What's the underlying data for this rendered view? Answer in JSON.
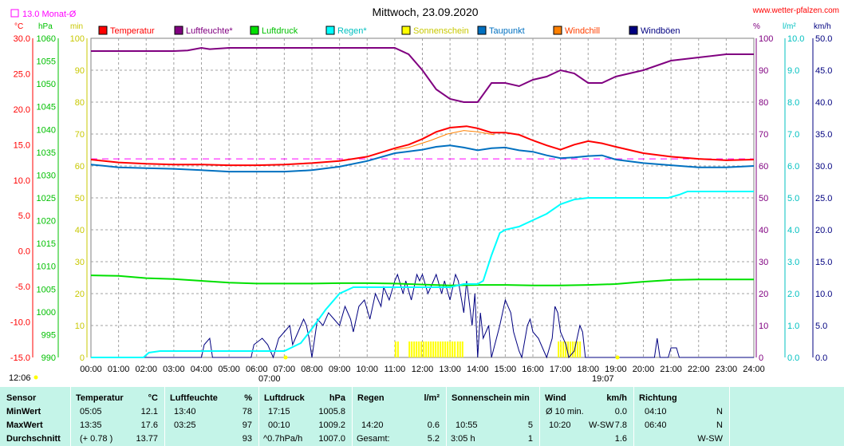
{
  "chart_data": {
    "type": "line",
    "title": "Mittwoch, 23.09.2020",
    "source": "www.wetter-pfalzen.com",
    "avg_note": "13.0 Monat-Ø",
    "units": {
      "temp": "°C",
      "pressure": "hPa",
      "sun": "min",
      "humidity": "%",
      "rain": "l/m²",
      "wind": "km/h"
    },
    "axes": {
      "temp": {
        "min": -15,
        "max": 30,
        "ticks": [
          "30.0",
          "25.0",
          "20.0",
          "15.0",
          "10.0",
          "5.0",
          "0.0",
          "-5.0",
          "-10.0",
          "-15.0"
        ],
        "color": "#ff0000"
      },
      "pressure": {
        "min": 990,
        "max": 1060,
        "ticks": [
          "1060",
          "1055",
          "1050",
          "1045",
          "1040",
          "1035",
          "1030",
          "1025",
          "1020",
          "1015",
          "1010",
          "1005",
          "1000",
          "995",
          "990"
        ],
        "color": "#00c000"
      },
      "sun": {
        "min": 0,
        "max": 100,
        "ticks": [
          "100",
          "90",
          "80",
          "70",
          "60",
          "50",
          "40",
          "30",
          "20",
          "10",
          "0"
        ],
        "color": "#c8c800"
      },
      "humidity": {
        "min": 0,
        "max": 100,
        "ticks": [
          "100",
          "90",
          "80",
          "70",
          "60",
          "50",
          "40",
          "30",
          "20",
          "10",
          "0"
        ],
        "color": "#800080"
      },
      "rain": {
        "min": 0,
        "max": 10,
        "ticks": [
          "10.0",
          "9.0",
          "8.0",
          "7.0",
          "6.0",
          "5.0",
          "4.0",
          "3.0",
          "2.0",
          "1.0",
          "0.0"
        ],
        "color": "#00c0c0"
      },
      "wind": {
        "min": 0,
        "max": 50,
        "ticks": [
          "50.0",
          "45.0",
          "40.0",
          "35.0",
          "30.0",
          "25.0",
          "20.0",
          "15.0",
          "10.0",
          "5.0",
          "0.0"
        ],
        "color": "#000080"
      }
    },
    "x_ticks": [
      "00:00",
      "01:00",
      "02:00",
      "03:00",
      "04:00",
      "05:00",
      "06:00",
      "07:00",
      "08:00",
      "09:00",
      "10:00",
      "11:00",
      "12:00",
      "13:00",
      "14:00",
      "15:00",
      "16:00",
      "17:00",
      "18:00",
      "19:00",
      "20:00",
      "21:00",
      "22:00",
      "23:00",
      "24:00"
    ],
    "sunrise": "07:00",
    "sunset": "19:07",
    "daylength": "12:06",
    "legend": [
      {
        "name": "Temperatur",
        "color": "#ff0000",
        "text_color": "#ff0000"
      },
      {
        "name": "Luftfeuchte*",
        "color": "#800080",
        "text_color": "#800080"
      },
      {
        "name": "Luftdruck",
        "color": "#00e000",
        "text_color": "#00c000"
      },
      {
        "name": "Regen*",
        "color": "#00ffff",
        "text_color": "#00c0c0"
      },
      {
        "name": "Sonnenschein",
        "color": "#ffff00",
        "text_color": "#c8c800"
      },
      {
        "name": "Taupunkt",
        "color": "#0070c0",
        "text_color": "#0070c0"
      },
      {
        "name": "Windchill",
        "color": "#ff8000",
        "text_color": "#ff4000"
      },
      {
        "name": "Windböen",
        "color": "#000080",
        "text_color": "#000080"
      }
    ],
    "monthly_avg_temp": 13.0,
    "series": {
      "temperature": [
        [
          0,
          12.9
        ],
        [
          1,
          12.5
        ],
        [
          2,
          12.3
        ],
        [
          3,
          12.2
        ],
        [
          4,
          12.2
        ],
        [
          5,
          12.1
        ],
        [
          6,
          12.1
        ],
        [
          7,
          12.2
        ],
        [
          8,
          12.4
        ],
        [
          9,
          12.7
        ],
        [
          10,
          13.3
        ],
        [
          11,
          14.5
        ],
        [
          11.5,
          15.0
        ],
        [
          12,
          15.8
        ],
        [
          12.5,
          16.8
        ],
        [
          13,
          17.4
        ],
        [
          13.6,
          17.6
        ],
        [
          14,
          17.3
        ],
        [
          14.5,
          16.7
        ],
        [
          15,
          16.7
        ],
        [
          15.5,
          16.4
        ],
        [
          16,
          15.6
        ],
        [
          16.5,
          14.9
        ],
        [
          17,
          14.3
        ],
        [
          17.5,
          15.0
        ],
        [
          18,
          15.5
        ],
        [
          18.5,
          15.2
        ],
        [
          19,
          14.7
        ],
        [
          20,
          13.8
        ],
        [
          21,
          13.3
        ],
        [
          22,
          13.0
        ],
        [
          23,
          12.8
        ],
        [
          24,
          12.9
        ]
      ],
      "dewpoint": [
        [
          0,
          12.2
        ],
        [
          1,
          11.8
        ],
        [
          2,
          11.7
        ],
        [
          3,
          11.6
        ],
        [
          4,
          11.4
        ],
        [
          5,
          11.2
        ],
        [
          6,
          11.2
        ],
        [
          7,
          11.2
        ],
        [
          8,
          11.4
        ],
        [
          9,
          11.9
        ],
        [
          10,
          12.7
        ],
        [
          11,
          13.8
        ],
        [
          12,
          14.3
        ],
        [
          12.5,
          14.7
        ],
        [
          13,
          14.9
        ],
        [
          13.5,
          14.6
        ],
        [
          14,
          14.2
        ],
        [
          14.5,
          14.5
        ],
        [
          15,
          14.6
        ],
        [
          15.5,
          14.2
        ],
        [
          16,
          14.0
        ],
        [
          16.5,
          13.5
        ],
        [
          17,
          13.1
        ],
        [
          17.5,
          13.2
        ],
        [
          18,
          13.4
        ],
        [
          18.5,
          13.5
        ],
        [
          19,
          12.9
        ],
        [
          20,
          12.4
        ],
        [
          21,
          12.1
        ],
        [
          22,
          11.8
        ],
        [
          23,
          11.8
        ],
        [
          24,
          12.0
        ]
      ],
      "humidity": [
        [
          0,
          96
        ],
        [
          1,
          96
        ],
        [
          2,
          96
        ],
        [
          3,
          96
        ],
        [
          3.5,
          96.2
        ],
        [
          4,
          97
        ],
        [
          4.3,
          96.6
        ],
        [
          5,
          97
        ],
        [
          6,
          97
        ],
        [
          7,
          97
        ],
        [
          8,
          97
        ],
        [
          9,
          97
        ],
        [
          10,
          97
        ],
        [
          11,
          97
        ],
        [
          11.5,
          95
        ],
        [
          12,
          90
        ],
        [
          12.5,
          84
        ],
        [
          13,
          81
        ],
        [
          13.5,
          80
        ],
        [
          14,
          80
        ],
        [
          14.5,
          86
        ],
        [
          15,
          86
        ],
        [
          15.5,
          85
        ],
        [
          16,
          87
        ],
        [
          16.5,
          88
        ],
        [
          17,
          90
        ],
        [
          17.5,
          89
        ],
        [
          18,
          86
        ],
        [
          18.5,
          86
        ],
        [
          19,
          88
        ],
        [
          20,
          90
        ],
        [
          21,
          93
        ],
        [
          22,
          94
        ],
        [
          23,
          95
        ],
        [
          24,
          95
        ]
      ],
      "pressure": [
        [
          0,
          1008.0
        ],
        [
          1,
          1007.9
        ],
        [
          2,
          1007.4
        ],
        [
          3,
          1007.2
        ],
        [
          4,
          1006.8
        ],
        [
          5,
          1006.4
        ],
        [
          6,
          1006.2
        ],
        [
          7,
          1006.2
        ],
        [
          8,
          1006.2
        ],
        [
          9,
          1006.3
        ],
        [
          10,
          1006.3
        ],
        [
          11,
          1006.2
        ],
        [
          12,
          1006.0
        ],
        [
          13,
          1005.8
        ],
        [
          14,
          1005.9
        ],
        [
          15,
          1005.9
        ],
        [
          16,
          1005.8
        ],
        [
          17,
          1005.8
        ],
        [
          18,
          1005.9
        ],
        [
          19,
          1006.1
        ],
        [
          20,
          1006.6
        ],
        [
          21,
          1007.0
        ],
        [
          22,
          1007.1
        ],
        [
          23,
          1007.1
        ],
        [
          24,
          1007.1
        ]
      ],
      "rain": [
        [
          0,
          0
        ],
        [
          1.9,
          0
        ],
        [
          2.1,
          0.15
        ],
        [
          2.5,
          0.2
        ],
        [
          3,
          0.2
        ],
        [
          7,
          0.2
        ],
        [
          7.6,
          0.45
        ],
        [
          8,
          0.9
        ],
        [
          8.5,
          1.5
        ],
        [
          9,
          2.0
        ],
        [
          9.5,
          2.2
        ],
        [
          10,
          2.2
        ],
        [
          11,
          2.2
        ],
        [
          12,
          2.2
        ],
        [
          13,
          2.2
        ],
        [
          13.5,
          2.3
        ],
        [
          14,
          2.3
        ],
        [
          14.2,
          2.4
        ],
        [
          14.5,
          3.2
        ],
        [
          14.8,
          3.9
        ],
        [
          15,
          4.0
        ],
        [
          15.5,
          4.1
        ],
        [
          16,
          4.3
        ],
        [
          16.5,
          4.5
        ],
        [
          17,
          4.8
        ],
        [
          17.5,
          4.95
        ],
        [
          18,
          5.0
        ],
        [
          19,
          5.0
        ],
        [
          20,
          5.0
        ],
        [
          20.9,
          5.0
        ],
        [
          21.3,
          5.1
        ],
        [
          21.6,
          5.2
        ],
        [
          24,
          5.2
        ]
      ],
      "gust": [
        [
          0,
          0
        ],
        [
          4,
          0
        ],
        [
          4.1,
          2
        ],
        [
          4.3,
          3
        ],
        [
          4.4,
          0
        ],
        [
          5.8,
          0
        ],
        [
          5.9,
          2
        ],
        [
          6.2,
          3
        ],
        [
          6.4,
          2
        ],
        [
          6.6,
          0
        ],
        [
          6.8,
          3
        ],
        [
          7,
          4
        ],
        [
          7.2,
          5
        ],
        [
          7.3,
          2
        ],
        [
          7.5,
          4
        ],
        [
          7.6,
          5
        ],
        [
          7.7,
          6
        ],
        [
          7.8,
          5
        ],
        [
          7.9,
          3
        ],
        [
          8,
          0
        ],
        [
          8.1,
          3
        ],
        [
          8.2,
          6
        ],
        [
          8.4,
          5
        ],
        [
          8.6,
          7
        ],
        [
          8.8,
          6
        ],
        [
          9,
          5
        ],
        [
          9.2,
          8
        ],
        [
          9.4,
          6
        ],
        [
          9.5,
          4
        ],
        [
          9.7,
          8
        ],
        [
          9.9,
          9
        ],
        [
          10.1,
          6
        ],
        [
          10.3,
          10
        ],
        [
          10.5,
          8
        ],
        [
          10.6,
          11
        ],
        [
          10.8,
          9
        ],
        [
          11,
          12
        ],
        [
          11.1,
          13
        ],
        [
          11.3,
          10
        ],
        [
          11.4,
          12
        ],
        [
          11.6,
          9
        ],
        [
          11.8,
          13
        ],
        [
          11.9,
          12
        ],
        [
          12,
          13
        ],
        [
          12.2,
          10
        ],
        [
          12.4,
          12
        ],
        [
          12.5,
          13
        ],
        [
          12.7,
          10
        ],
        [
          12.8,
          12
        ],
        [
          13,
          9
        ],
        [
          13.2,
          13
        ],
        [
          13.3,
          12
        ],
        [
          13.5,
          7
        ],
        [
          13.6,
          12
        ],
        [
          13.8,
          5
        ],
        [
          13.9,
          10
        ],
        [
          14,
          0
        ],
        [
          14.1,
          7
        ],
        [
          14.2,
          3
        ],
        [
          14.4,
          5
        ],
        [
          14.5,
          0
        ],
        [
          14.8,
          5
        ],
        [
          15,
          9
        ],
        [
          15.2,
          7
        ],
        [
          15.3,
          4
        ],
        [
          15.5,
          1
        ],
        [
          15.6,
          0
        ],
        [
          15.8,
          5
        ],
        [
          15.9,
          6
        ],
        [
          16,
          4
        ],
        [
          16.2,
          3
        ],
        [
          16.4,
          1
        ],
        [
          16.5,
          0
        ],
        [
          16.7,
          3
        ],
        [
          16.8,
          8
        ],
        [
          16.9,
          7
        ],
        [
          17,
          4
        ],
        [
          17.2,
          2
        ],
        [
          17.3,
          0
        ],
        [
          17.5,
          1
        ],
        [
          17.6,
          3
        ],
        [
          17.7,
          5
        ],
        [
          17.8,
          4
        ],
        [
          17.9,
          0
        ],
        [
          18.5,
          0
        ],
        [
          20.4,
          0
        ],
        [
          20.5,
          3
        ],
        [
          20.6,
          0
        ],
        [
          20.9,
          0
        ],
        [
          21,
          1.5
        ],
        [
          21.2,
          1.5
        ],
        [
          21.3,
          0
        ],
        [
          24,
          0
        ]
      ],
      "windchill": [
        [
          11,
          14.3
        ],
        [
          11.5,
          14.6
        ],
        [
          12.3,
          15.6
        ],
        [
          12.9,
          16.5
        ],
        [
          13.5,
          17.0
        ],
        [
          14,
          16.8
        ],
        [
          14.6,
          16.4
        ]
      ],
      "sunshine_bars": [
        [
          11.0,
          11.1
        ],
        [
          11.5,
          13.2
        ],
        [
          13.25,
          13.5
        ],
        [
          16.9,
          17.7
        ]
      ]
    }
  },
  "summary": {
    "sensor": {
      "header": "Sensor",
      "rows": [
        "MinWert",
        "MaxWert",
        "Durchschnitt"
      ]
    },
    "temperatur": {
      "header": "Temperatur",
      "unit": "°C",
      "rows": [
        [
          "05:05",
          "12.1"
        ],
        [
          "13:35",
          "17.6"
        ],
        [
          "(+ 0.78 )",
          "13.77"
        ]
      ]
    },
    "luftfeuchte": {
      "header": "Luftfeuchte",
      "unit": "%",
      "rows": [
        [
          "13:40",
          "78"
        ],
        [
          "03:25",
          "97"
        ],
        [
          "",
          "93"
        ]
      ]
    },
    "luftdruck": {
      "header": "Luftdruck",
      "unit": "hPa",
      "rows": [
        [
          "17:15",
          "1005.8"
        ],
        [
          "00:10",
          "1009.2"
        ],
        [
          "^0.7hPa/h",
          "1007.0"
        ]
      ]
    },
    "regen": {
      "header": "Regen",
      "unit": "l/m²",
      "rows": [
        [
          "",
          ""
        ],
        [
          "14:20",
          "0.6"
        ],
        [
          "Gesamt:",
          "5.2"
        ]
      ]
    },
    "sonnenschein": {
      "header": "Sonnenschein min",
      "rows": [
        [
          "",
          ""
        ],
        [
          "10:55",
          "5"
        ],
        [
          "3:05 h",
          "1"
        ]
      ]
    },
    "wind": {
      "header": "Wind",
      "unit": "km/h",
      "rows": [
        [
          "Ø 10 min.",
          "",
          "0.0"
        ],
        [
          "10:20",
          "W-SW",
          "7.8"
        ],
        [
          "",
          "",
          "1.6"
        ]
      ]
    },
    "richtung": {
      "header": "Richtung",
      "rows": [
        [
          "04:10",
          "N"
        ],
        [
          "06:40",
          "N"
        ],
        [
          "",
          "W-SW"
        ]
      ]
    }
  }
}
